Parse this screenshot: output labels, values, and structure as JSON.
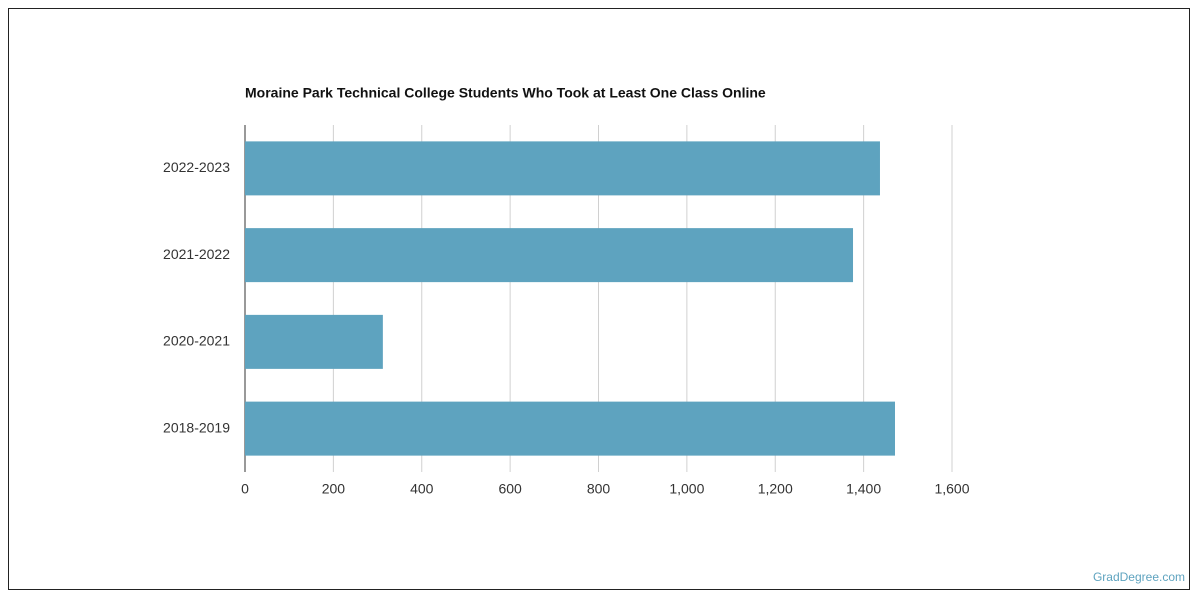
{
  "chart_data": {
    "type": "hbar",
    "title": "Moraine Park Technical College Students Who Took at Least One Class Online",
    "categories": [
      "2022-2023",
      "2021-2022",
      "2020-2021",
      "2018-2019"
    ],
    "values": [
      1437,
      1376,
      312,
      1471
    ],
    "color": "#5ea3bf",
    "xlim": [
      0,
      1600
    ],
    "xticks": [
      0,
      200,
      400,
      600,
      800,
      {
        "value": 1000,
        "label": "1,000"
      },
      {
        "value": 1200,
        "label": "1,200"
      },
      {
        "value": 1400,
        "label": "1,400"
      },
      {
        "value": 1600,
        "label": "1,600"
      }
    ],
    "grid": true
  },
  "watermark": "GradDegree.com"
}
